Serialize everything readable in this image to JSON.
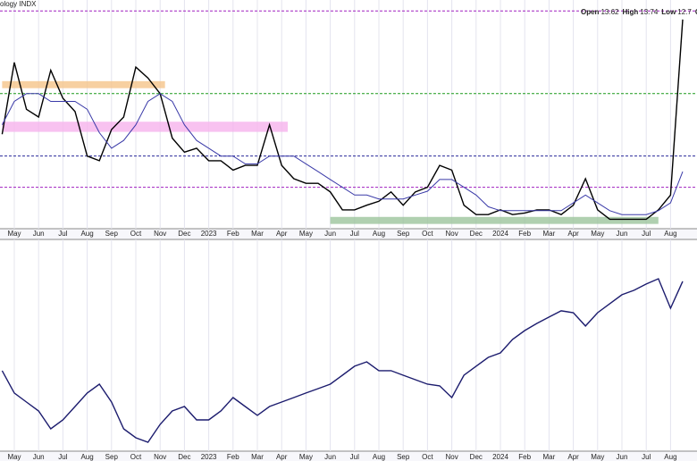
{
  "chart_data": [
    {
      "type": "line",
      "title": "ology INDX",
      "ohlc": [
        {
          "label": "Open",
          "value": 13.62
        },
        {
          "label": "High",
          "value": 13.74
        },
        {
          "label": "Low",
          "value": 12.7
        }
      ],
      "ohlc_tail": "Clo",
      "categories": [
        null,
        "May",
        null,
        "Jun",
        null,
        "Jul",
        null,
        "Aug",
        null,
        "Sep",
        null,
        "Oct",
        null,
        "Nov",
        null,
        "Dec",
        null,
        "2023",
        null,
        "Feb",
        null,
        "Mar",
        null,
        "Apr",
        null,
        "May",
        null,
        "Jun",
        null,
        "Jul",
        null,
        "Aug",
        null,
        "Sep",
        null,
        "Oct",
        null,
        "Nov",
        null,
        "Dec",
        null,
        "2024",
        null,
        "Feb",
        null,
        "Mar",
        null,
        "Apr",
        null,
        "May",
        null,
        "Jun",
        null,
        "Jul",
        null,
        "Aug",
        null
      ],
      "series": [
        {
          "color": "#000000",
          "values": [
            22.8,
            32,
            26,
            25,
            31,
            27.4,
            25.7,
            20,
            19.4,
            23.4,
            25,
            31.4,
            30,
            28,
            22.3,
            20.5,
            21,
            19.4,
            19.4,
            18.2,
            18.8,
            18.8,
            24,
            18.8,
            17.1,
            16.5,
            16.5,
            15.4,
            13.1,
            13.1,
            13.7,
            14.2,
            15.4,
            13.7,
            15.4,
            16,
            18.8,
            18.2,
            13.7,
            12.5,
            12.5,
            13.1,
            12.5,
            12.7,
            13.1,
            13.1,
            12.5,
            13.7,
            17.1,
            13.1,
            11.9,
            11.9,
            11.9,
            11.9,
            13.1,
            15,
            37.5
          ]
        },
        {
          "color": "#3a3aa8",
          "values": [
            24,
            27,
            28,
            28,
            27,
            27,
            27,
            26,
            23,
            21,
            22,
            24,
            27,
            28,
            27,
            24,
            22,
            21,
            20,
            20,
            19,
            19,
            20,
            20,
            20,
            19,
            18,
            17,
            16,
            15,
            15,
            14.5,
            14.5,
            14.5,
            15,
            15.5,
            17,
            17,
            16,
            15,
            13.5,
            13,
            13,
            13,
            13,
            13,
            13,
            14,
            15,
            14,
            13,
            12.5,
            12.5,
            12.5,
            13,
            14,
            18
          ]
        }
      ],
      "ylim": [
        10,
        40
      ],
      "hlines": [
        {
          "value": 38.6,
          "color": "#a020c0"
        },
        {
          "value": 28,
          "color": "#1a9a1a"
        },
        {
          "value": 20,
          "color": "#2a2a9a"
        },
        {
          "value": 16,
          "color": "#a020c0"
        }
      ],
      "bands": [
        {
          "from": 28.7,
          "to": 29.6,
          "start": 0,
          "end": 13.4,
          "color": "#f5c48a"
        },
        {
          "from": 23.1,
          "to": 24.4,
          "start": 0,
          "end": 23.5,
          "color": "#f6b3ec"
        },
        {
          "from": 11.3,
          "to": 12.2,
          "start": 27,
          "end": 54,
          "color": "#9cc49c"
        }
      ]
    },
    {
      "type": "line",
      "categories": [
        null,
        "May",
        null,
        "Jun",
        null,
        "Jul",
        null,
        "Aug",
        null,
        "Sep",
        null,
        "Oct",
        null,
        "Nov",
        null,
        "Dec",
        null,
        "2023",
        null,
        "Feb",
        null,
        "Mar",
        null,
        "Apr",
        null,
        "May",
        null,
        "Jun",
        null,
        "Jul",
        null,
        "Aug",
        null,
        "Sep",
        null,
        "Oct",
        null,
        "Nov",
        null,
        "Dec",
        null,
        "2024",
        null,
        "Feb",
        null,
        "Mar",
        null,
        "Apr",
        null,
        "May",
        null,
        "Jun",
        null,
        "Jul",
        null,
        "Aug",
        null
      ],
      "series": [
        {
          "color": "#1c1c6e",
          "values": [
            4469,
            4200,
            4092,
            3984,
            3769,
            3877,
            4038,
            4200,
            4307,
            4092,
            3769,
            3661,
            3608,
            3823,
            3984,
            4038,
            3877,
            3877,
            3984,
            4146,
            4038,
            3931,
            4038,
            4092,
            4146,
            4200,
            4253,
            4307,
            4415,
            4523,
            4576,
            4469,
            4469,
            4415,
            4361,
            4307,
            4286,
            4146,
            4415,
            4523,
            4630,
            4684,
            4846,
            4953,
            5039,
            5115,
            5190,
            5168,
            5007,
            5168,
            5276,
            5384,
            5438,
            5513,
            5577,
            5222,
            5545
          ]
        }
      ],
      "ylim": [
        3500,
        6050
      ]
    }
  ]
}
